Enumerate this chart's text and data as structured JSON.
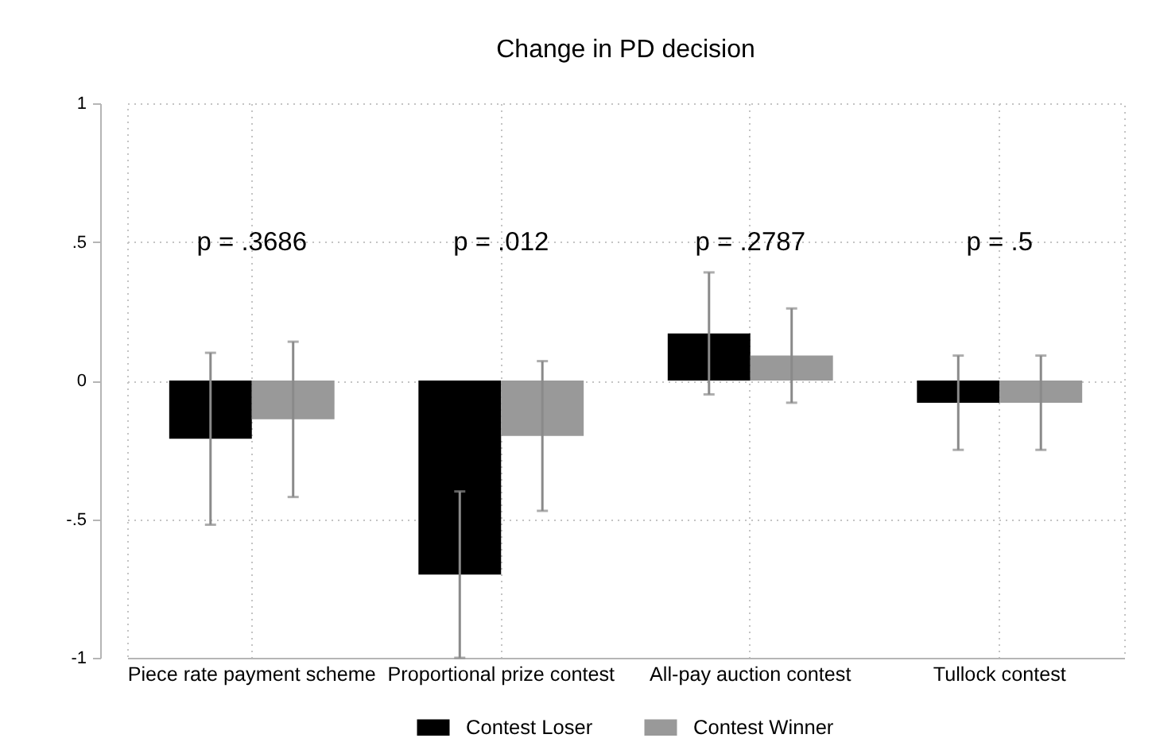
{
  "chart_data": {
    "type": "bar",
    "title": "Change in PD decision",
    "categories": [
      "Piece rate payment scheme",
      "Proportional prize contest",
      "All-pay auction contest",
      "Tullock contest"
    ],
    "series": [
      {
        "name": "Contest Loser",
        "color": "#000000",
        "values": [
          -0.21,
          -0.7,
          0.17,
          -0.08
        ],
        "errors": [
          0.31,
          0.3,
          0.22,
          0.17
        ]
      },
      {
        "name": "Contest Winner",
        "color": "#999999",
        "values": [
          -0.14,
          -0.2,
          0.09,
          -0.08
        ],
        "errors": [
          0.28,
          0.27,
          0.17,
          0.17
        ]
      }
    ],
    "ylim": [
      -1,
      1
    ],
    "yticks": [
      -1,
      {
        "value": -0.5,
        "label": "-.5"
      },
      0,
      {
        "value": 0.5,
        "label": ".5"
      },
      1
    ],
    "grid": true,
    "legend": "bottom",
    "annotations": [
      "p = .3686",
      "p = .012",
      "p = .2787",
      "p = .5"
    ]
  }
}
